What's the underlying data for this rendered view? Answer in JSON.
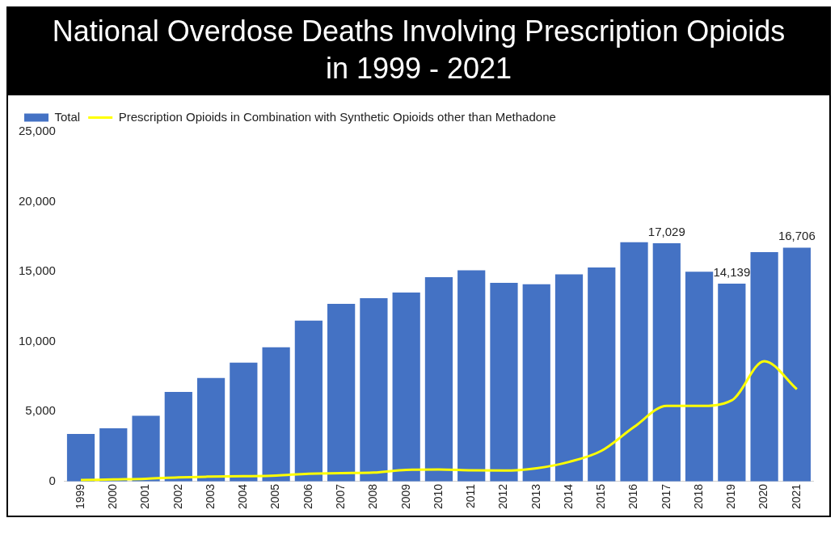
{
  "chart_data": {
    "type": "bar",
    "title": "National Overdose Deaths Involving Prescription Opioids in 1999 - 2021",
    "categories": [
      "1999",
      "2000",
      "2001",
      "2002",
      "2003",
      "2004",
      "2005",
      "2006",
      "2007",
      "2008",
      "2009",
      "2010",
      "2011",
      "2012",
      "2013",
      "2014",
      "2015",
      "2016",
      "2017",
      "2018",
      "2019",
      "2020",
      "2021"
    ],
    "series": [
      {
        "name": "Total",
        "color": "#4472c4",
        "values": [
          3400,
          3800,
          4700,
          6400,
          7400,
          8500,
          9600,
          11500,
          12700,
          13100,
          13500,
          14600,
          15100,
          14200,
          14100,
          14800,
          15300,
          17100,
          17029,
          15000,
          14139,
          16400,
          16706
        ],
        "value_labels": [
          null,
          null,
          null,
          null,
          null,
          null,
          null,
          null,
          null,
          null,
          null,
          null,
          null,
          null,
          null,
          null,
          null,
          null,
          "17,029",
          null,
          "14,139",
          null,
          "16,706"
        ]
      },
      {
        "name": "Prescription Opioids in Combination with Synthetic Opioids other than Methadone",
        "type": "line",
        "color": "#ffff00",
        "values": [
          100,
          150,
          200,
          300,
          350,
          380,
          430,
          560,
          600,
          640,
          830,
          860,
          800,
          780,
          950,
          1400,
          2200,
          3900,
          5400,
          5400,
          5800,
          8600,
          6600
        ]
      }
    ],
    "ylim": [
      0,
      25000
    ],
    "yticks": [
      {
        "value": 0,
        "label": "0"
      },
      {
        "value": 5000,
        "label": "5,000"
      },
      {
        "value": 10000,
        "label": "10,000"
      },
      {
        "value": 15000,
        "label": "15,000"
      },
      {
        "value": 20000,
        "label": "20,000"
      },
      {
        "value": 25000,
        "label": "25,000"
      }
    ],
    "grid": false,
    "legend": "top left",
    "marker": "none",
    "line_style": "solid"
  }
}
